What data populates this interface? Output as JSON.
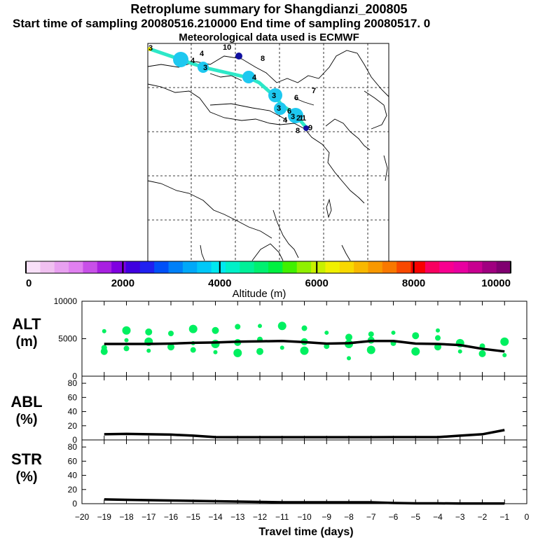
{
  "title": "Retroplume summary for Shangdianzi_200805",
  "subtitle": "Start time of sampling 20080516.210000     End time of sampling 20080517.     0",
  "met_note": "Meteorological data used is ECMWF",
  "map": {
    "trajectory_labels": [
      "3",
      "4",
      "10",
      "8",
      "4",
      "3",
      "4",
      "6",
      "7",
      "3",
      "3",
      "3",
      "6",
      "4",
      "2",
      "1",
      "8",
      "9",
      "1"
    ],
    "colors": {
      "trajectory": "#2de8c8",
      "cluster": "#1ec8f0",
      "land": "#000000"
    }
  },
  "colorbar": {
    "title": "Altitude (m)",
    "ticks": [
      "0",
      "2000",
      "4000",
      "6000",
      "8000",
      "10000"
    ],
    "colors": [
      "#f8e0f8",
      "#f0c0f0",
      "#e8a0f0",
      "#e080f0",
      "#c850e8",
      "#a820e0",
      "#8000e0",
      "#4000e0",
      "#2020f0",
      "#0050f8",
      "#0080f8",
      "#00a8f8",
      "#00c8f8",
      "#00e8f0",
      "#00f0c8",
      "#00f098",
      "#00f070",
      "#00f040",
      "#40f000",
      "#90f000",
      "#c8f000",
      "#f0f000",
      "#f8d800",
      "#f8b800",
      "#f89800",
      "#f87800",
      "#f84800",
      "#f80000",
      "#f80060",
      "#f80090",
      "#e800a0",
      "#c80090",
      "#a00080",
      "#800070"
    ]
  },
  "chart_data": [
    {
      "type": "line",
      "panel": "ALT",
      "ylabel": "ALT\n(m)",
      "ylabel_line1": "ALT",
      "ylabel_line2": "(m)",
      "ylim": [
        0,
        10000
      ],
      "yticks": [
        "10000",
        "5000",
        "0"
      ],
      "x": [
        -19,
        -18,
        -17,
        -16,
        -15,
        -14,
        -13,
        -12,
        -11,
        -10,
        -9,
        -8,
        -7,
        -6,
        -5,
        -4,
        -3,
        -2,
        -1
      ],
      "series": [
        {
          "name": "mean altitude",
          "values": [
            4300,
            4300,
            4300,
            4350,
            4450,
            4500,
            4600,
            4650,
            4700,
            4550,
            4350,
            4400,
            4700,
            4700,
            4350,
            4300,
            4150,
            3650,
            3300
          ]
        }
      ],
      "clusters": {
        "name": "plume clusters (m)",
        "color": "#00f060",
        "points": [
          [
            -19,
            6000
          ],
          [
            -19,
            3800
          ],
          [
            -19,
            3300
          ],
          [
            -18,
            6100
          ],
          [
            -18,
            4800
          ],
          [
            -18,
            3700
          ],
          [
            -17,
            5900
          ],
          [
            -17,
            4600
          ],
          [
            -17,
            3400
          ],
          [
            -16,
            5700
          ],
          [
            -16,
            3900
          ],
          [
            -15,
            6300
          ],
          [
            -15,
            4400
          ],
          [
            -15,
            3500
          ],
          [
            -14,
            6100
          ],
          [
            -14,
            4300
          ],
          [
            -14,
            3200
          ],
          [
            -13,
            6600
          ],
          [
            -13,
            4500
          ],
          [
            -13,
            3100
          ],
          [
            -12,
            6700
          ],
          [
            -12,
            4900
          ],
          [
            -12,
            3300
          ],
          [
            -11,
            6700
          ],
          [
            -11,
            3800
          ],
          [
            -10,
            6400
          ],
          [
            -10,
            4600
          ],
          [
            -10,
            3400
          ],
          [
            -9,
            5800
          ],
          [
            -9,
            4000
          ],
          [
            -8,
            5200
          ],
          [
            -8,
            4300
          ],
          [
            -8,
            2400
          ],
          [
            -7,
            5600
          ],
          [
            -7,
            4800
          ],
          [
            -7,
            3500
          ],
          [
            -6,
            5800
          ],
          [
            -6,
            4400
          ],
          [
            -5,
            5400
          ],
          [
            -5,
            3300
          ],
          [
            -4,
            6100
          ],
          [
            -4,
            5100
          ],
          [
            -4,
            3900
          ],
          [
            -3,
            4400
          ],
          [
            -3,
            3300
          ],
          [
            -2,
            4000
          ],
          [
            -2,
            3000
          ],
          [
            -1,
            4600
          ],
          [
            -1,
            2800
          ]
        ]
      }
    },
    {
      "type": "line",
      "panel": "ABL",
      "ylabel_line1": "ABL",
      "ylabel_line2": "(%)",
      "ylim": [
        0,
        90
      ],
      "yticks": [
        "80",
        "60",
        "40",
        "20",
        "0"
      ],
      "x": [
        -19,
        -18,
        -17,
        -16,
        -15,
        -14,
        -13,
        -12,
        -11,
        -10,
        -9,
        -8,
        -7,
        -6,
        -5,
        -4,
        -3,
        -2,
        -1
      ],
      "series": [
        {
          "name": "ABL fraction",
          "values": [
            8,
            8.5,
            8,
            7.5,
            6,
            4,
            3.8,
            3.8,
            3.8,
            3.8,
            3.8,
            3.8,
            3.8,
            4,
            4,
            4,
            6,
            8,
            14
          ]
        }
      ]
    },
    {
      "type": "line",
      "panel": "STR",
      "ylabel_line1": "STR",
      "ylabel_line2": "(%)",
      "ylim": [
        0,
        90
      ],
      "yticks": [
        "80",
        "60",
        "40",
        "20",
        "0"
      ],
      "xlabel": "Travel time (days)",
      "xticks": [
        "−20",
        "−19",
        "−18",
        "−17",
        "−16",
        "−15",
        "−14",
        "−13",
        "−12",
        "−11",
        "−10",
        "−9",
        "−8",
        "−7",
        "−6",
        "−5",
        "−4",
        "−3",
        "−2",
        "−1",
        "0"
      ],
      "x": [
        -19,
        -18,
        -17,
        -16,
        -15,
        -14,
        -13,
        -12,
        -11,
        -10,
        -9,
        -8,
        -7,
        -6,
        -5,
        -4,
        -3,
        -2,
        -1
      ],
      "series": [
        {
          "name": "stratospheric fraction",
          "values": [
            6,
            5.5,
            5,
            4.5,
            4,
            3.5,
            3,
            2.5,
            2,
            2,
            2,
            2,
            2,
            1,
            0.5,
            0.5,
            0.3,
            0.2,
            0.2
          ]
        }
      ]
    }
  ]
}
